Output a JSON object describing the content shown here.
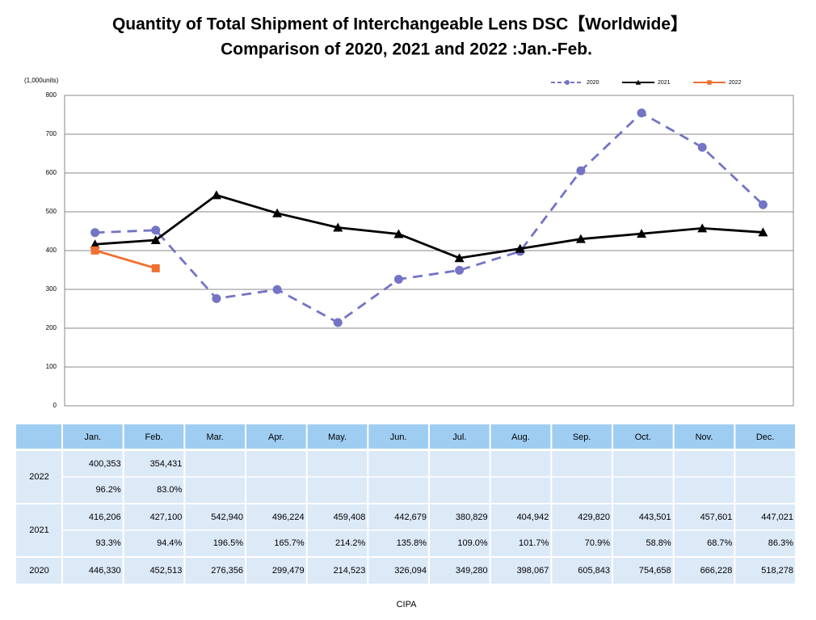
{
  "chart_data": {
    "type": "line",
    "title": "Quantity of Total Shipment of Interchangeable Lens DSC【Worldwide】",
    "subtitle": "Comparison of 2020, 2021 and 2022 :Jan.-Feb.",
    "y_label": "(1,000units)",
    "categories": [
      "Jan.",
      "Feb.",
      "Mar.",
      "Apr.",
      "May.",
      "Jun.",
      "Jul.",
      "Aug.",
      "Sep.",
      "Oct.",
      "Nov.",
      "Dec."
    ],
    "series": [
      {
        "name": "2020",
        "color": "#7474c6",
        "dash": true,
        "marker": "circle",
        "values": [
          446.33,
          452.513,
          276.356,
          299.479,
          214.523,
          326.094,
          349.28,
          398.067,
          605.843,
          754.658,
          666.228,
          518.278
        ]
      },
      {
        "name": "2021",
        "color": "#000000",
        "dash": false,
        "marker": "triangle",
        "values": [
          416.206,
          427.1,
          542.94,
          496.224,
          459.408,
          442.679,
          380.829,
          404.942,
          429.82,
          443.501,
          457.601,
          447.021
        ]
      },
      {
        "name": "2022",
        "color": "#f07030",
        "dash": false,
        "marker": "square",
        "values": [
          400.353,
          354.431,
          null,
          null,
          null,
          null,
          null,
          null,
          null,
          null,
          null,
          null
        ]
      }
    ],
    "ylim": [
      0,
      800
    ],
    "yticks": [
      0,
      100,
      200,
      300,
      400,
      500,
      600,
      700,
      800
    ],
    "grid": true,
    "legend": "top-right"
  },
  "table": {
    "rows": [
      {
        "year": "2022",
        "lines": [
          [
            "400,353",
            "354,431"
          ],
          [
            "96.2%",
            "83.0%"
          ]
        ]
      },
      {
        "year": "2021",
        "lines": [
          [
            "416,206",
            "427,100",
            "542,940",
            "496,224",
            "459,408",
            "442,679",
            "380,829",
            "404,942",
            "429,820",
            "443,501",
            "457,601",
            "447,021"
          ],
          [
            "93.3%",
            "94.4%",
            "196.5%",
            "165.7%",
            "214.2%",
            "135.8%",
            "109.0%",
            "101.7%",
            "70.9%",
            "58.8%",
            "68.7%",
            "86.3%"
          ]
        ]
      },
      {
        "year": "2020",
        "lines": [
          [
            "446,330",
            "452,513",
            "276,356",
            "299,479",
            "214,523",
            "326,094",
            "349,280",
            "398,067",
            "605,843",
            "754,658",
            "666,228",
            "518,278"
          ]
        ]
      }
    ]
  },
  "footer": "CIPA"
}
